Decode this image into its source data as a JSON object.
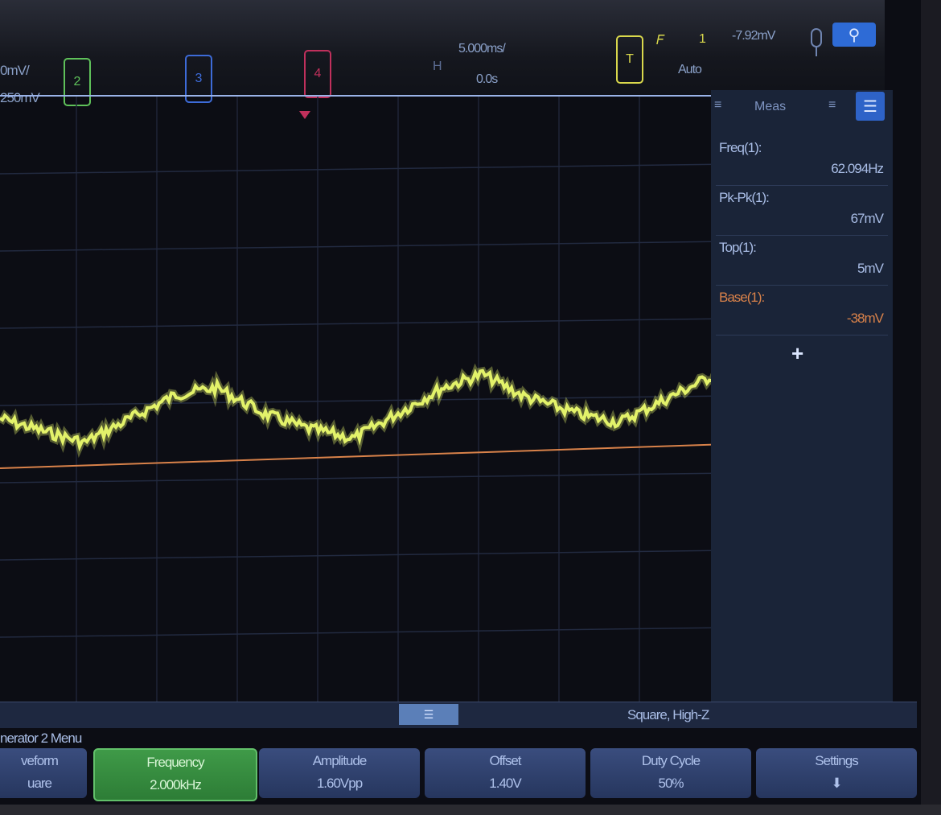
{
  "topbar": {
    "ch1_scale_top": "0mV/",
    "ch1_scale_bottom": "250mV",
    "ch2_label": "2",
    "ch3_label": "3",
    "ch4_label": "4",
    "horizontal_label": "H",
    "timebase": "5.000ms/",
    "delay": "0.0s",
    "trigger_label": "T",
    "trigger_slope_symbol": "𝐹",
    "trigger_source": "1",
    "trigger_mode": "Auto",
    "trigger_level": "-7.92mV",
    "search_icon": "magnifier-icon"
  },
  "colors": {
    "ch1": "#e3f26a",
    "ch2": "#5fc15a",
    "ch3": "#3d6bd8",
    "ch4": "#c0305c",
    "trigger": "#d9d84c",
    "base_line": "#d9824a",
    "accent": "#2e6bd6",
    "active_softkey": "#3f9a48"
  },
  "sidebar": {
    "title": "Meas",
    "menu_icon": "list-icon",
    "measurements": [
      {
        "name": "Freq(1):",
        "value": "62.094Hz"
      },
      {
        "name": "Pk-Pk(1):",
        "value": "67mV"
      },
      {
        "name": "Top(1):",
        "value": "5mV"
      },
      {
        "name": "Base(1):",
        "value": "-38mV"
      }
    ],
    "add_label": "+"
  },
  "bottom": {
    "generator_status": "Square, High-Z",
    "menu_title": "nerator 2 Menu",
    "softkeys": [
      {
        "label": "veform",
        "value": "uare"
      },
      {
        "label": "Frequency",
        "value": "2.000kHz"
      },
      {
        "label": "Amplitude",
        "value": "1.60Vpp"
      },
      {
        "label": "Offset",
        "value": "1.40V"
      },
      {
        "label": "Duty Cycle",
        "value": "50%"
      },
      {
        "label": "Settings",
        "value": "⬇"
      }
    ]
  }
}
